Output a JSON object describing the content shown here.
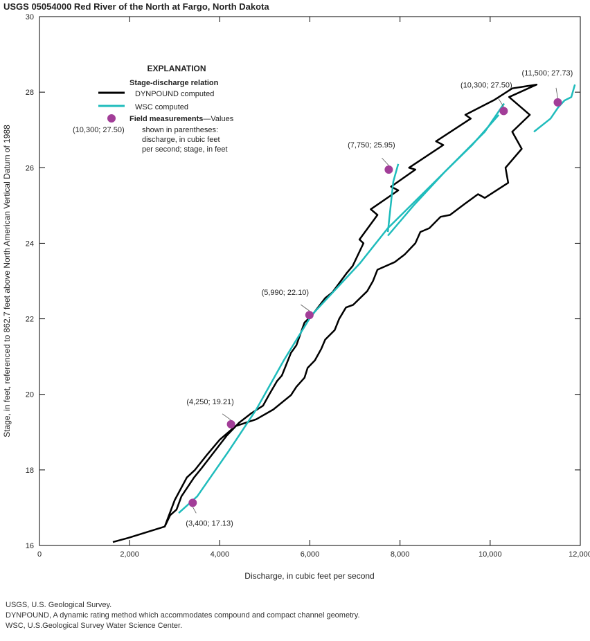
{
  "chart_data": {
    "type": "line",
    "title": "USGS 05054000 Red River of the North at Fargo, North Dakota",
    "xlabel": "Discharge, in cubic feet per second",
    "ylabel": "Stage, in feet, referenced to 862.7 feet above North American Vertical Datum of 1988",
    "xlim": [
      0,
      12000
    ],
    "ylim": [
      16,
      30
    ],
    "xticks": [
      0,
      2000,
      4000,
      6000,
      8000,
      10000,
      12000
    ],
    "xtick_labels": [
      "0",
      "2,000",
      "4,000",
      "6,000",
      "8,000",
      "10,000",
      "12,000"
    ],
    "yticks": [
      16,
      18,
      20,
      22,
      24,
      26,
      28,
      30
    ],
    "ytick_labels": [
      "16",
      "18",
      "20",
      "22",
      "24",
      "26",
      "28",
      "30"
    ],
    "grid": false,
    "colors": {
      "dynpound": "#000000",
      "wsc": "#1fbcbc",
      "field": "#a23d98"
    },
    "legend": {
      "title": "EXPLANATION",
      "subtitle": "Stage-discharge relation",
      "dynpound": "DYNPOUND computed",
      "wsc": "WSC computed",
      "field_bold": "Field measurements",
      "field_rest": "—Values",
      "field_lines": [
        "shown in parentheses:",
        "discharge, in cubic feet",
        "per second; stage, in feet"
      ],
      "example_label": "(10,300; 27.50)",
      "placement": "top-left"
    },
    "dynpound": [
      [
        1629,
        16.09
      ],
      [
        1970,
        16.2
      ],
      [
        2780,
        16.5
      ],
      [
        2900,
        16.8
      ],
      [
        3040,
        16.95
      ],
      [
        3150,
        17.3
      ],
      [
        3430,
        17.8
      ],
      [
        3600,
        18.05
      ],
      [
        3890,
        18.5
      ],
      [
        4150,
        18.9
      ],
      [
        4430,
        19.25
      ],
      [
        4700,
        19.5
      ],
      [
        4960,
        19.7
      ],
      [
        5100,
        20.0
      ],
      [
        5270,
        20.35
      ],
      [
        5380,
        20.5
      ],
      [
        5580,
        21.1
      ],
      [
        5700,
        21.3
      ],
      [
        5880,
        21.9
      ],
      [
        6050,
        22.1
      ],
      [
        6340,
        22.55
      ],
      [
        6500,
        22.7
      ],
      [
        6810,
        23.2
      ],
      [
        6950,
        23.4
      ],
      [
        7190,
        24.0
      ],
      [
        7100,
        24.1
      ],
      [
        7500,
        24.75
      ],
      [
        7350,
        24.9
      ],
      [
        7960,
        25.4
      ],
      [
        7800,
        25.5
      ],
      [
        8340,
        25.95
      ],
      [
        8200,
        26.0
      ],
      [
        8960,
        26.6
      ],
      [
        8800,
        26.7
      ],
      [
        9570,
        27.3
      ],
      [
        9450,
        27.4
      ],
      [
        10100,
        27.8
      ],
      [
        10490,
        28.1
      ],
      [
        11030,
        28.2
      ],
      [
        10420,
        27.87
      ],
      [
        10880,
        27.4
      ],
      [
        10490,
        26.95
      ],
      [
        10700,
        26.5
      ],
      [
        10340,
        26.0
      ],
      [
        10400,
        25.6
      ],
      [
        9880,
        25.2
      ],
      [
        9730,
        25.3
      ],
      [
        9420,
        25.03
      ],
      [
        9110,
        24.75
      ],
      [
        8900,
        24.7
      ],
      [
        8650,
        24.4
      ],
      [
        8450,
        24.3
      ],
      [
        8340,
        24.0
      ],
      [
        8100,
        23.7
      ],
      [
        7880,
        23.5
      ],
      [
        7500,
        23.3
      ],
      [
        7400,
        23.0
      ],
      [
        7270,
        22.73
      ],
      [
        6960,
        22.37
      ],
      [
        6800,
        22.3
      ],
      [
        6650,
        22.0
      ],
      [
        6550,
        21.7
      ],
      [
        6340,
        21.45
      ],
      [
        6250,
        21.2
      ],
      [
        6110,
        20.9
      ],
      [
        5950,
        20.7
      ],
      [
        5880,
        20.44
      ],
      [
        5700,
        20.2
      ],
      [
        5580,
        19.98
      ],
      [
        5190,
        19.6
      ],
      [
        4810,
        19.34
      ],
      [
        4350,
        19.16
      ],
      [
        4000,
        18.8
      ],
      [
        3730,
        18.42
      ],
      [
        3450,
        18.0
      ],
      [
        3270,
        17.8
      ],
      [
        3000,
        17.2
      ],
      [
        2780,
        16.5
      ]
    ],
    "wsc": [
      [
        [
          3090,
          16.86
        ],
        [
          3500,
          17.3
        ],
        [
          4200,
          18.5
        ],
        [
          4810,
          19.6
        ],
        [
          5420,
          20.9
        ],
        [
          6040,
          22.1
        ],
        [
          7110,
          23.47
        ],
        [
          7730,
          24.4
        ],
        [
          8960,
          25.85
        ],
        [
          9880,
          26.95
        ],
        [
          10310,
          27.7
        ]
      ],
      [
        [
          7730,
          24.2
        ],
        [
          8300,
          25.0
        ],
        [
          9000,
          25.9
        ],
        [
          9600,
          26.6
        ],
        [
          10190,
          27.4
        ]
      ],
      [
        [
          7730,
          24.3
        ],
        [
          7850,
          25.63
        ],
        [
          7960,
          26.1
        ]
      ],
      [
        [
          10970,
          26.95
        ],
        [
          11340,
          27.3
        ],
        [
          11510,
          27.6
        ],
        [
          11650,
          27.78
        ],
        [
          11800,
          27.87
        ],
        [
          11880,
          28.2
        ]
      ]
    ],
    "field_measurements": [
      {
        "x": 3400,
        "y": 17.13,
        "label": "(3,400; 17.13)"
      },
      {
        "x": 4250,
        "y": 19.21,
        "label": "(4,250; 19.21)"
      },
      {
        "x": 5990,
        "y": 22.1,
        "label": "(5,990; 22.10)"
      },
      {
        "x": 7750,
        "y": 25.95,
        "label": "(7,750; 25.95)"
      },
      {
        "x": 10300,
        "y": 27.5,
        "label": "(10,300; 27.50)"
      },
      {
        "x": 11500,
        "y": 27.73,
        "label": "(11,500; 27.73)"
      }
    ]
  },
  "footnotes": [
    "USGS, U.S. Geological Survey.",
    "DYNPOUND, A dynamic rating method which accommodates compound and compact channel geometry.",
    "WSC, U.S.Geological Survey Water Science Center."
  ]
}
